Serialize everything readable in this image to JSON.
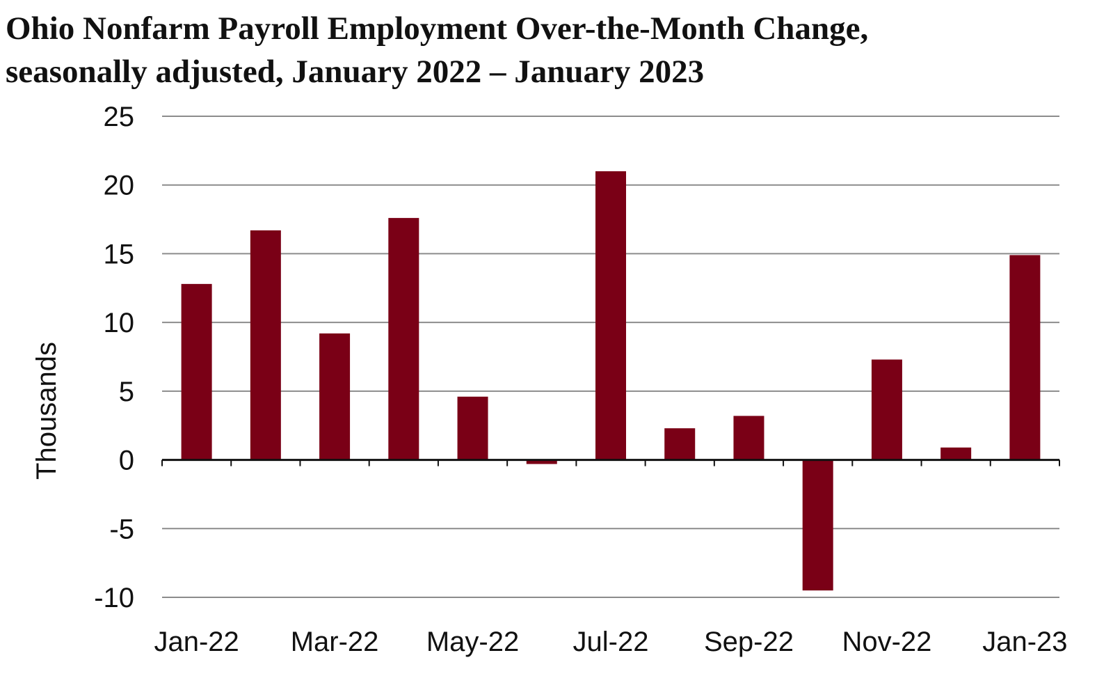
{
  "chart_data": {
    "type": "bar",
    "title": "Ohio Nonfarm Payroll Employment Over-the-Month Change,",
    "subtitle": "seasonally adjusted, January 2022 – January 2023",
    "xlabel": "",
    "ylabel": "Thousands",
    "ylim": [
      -10,
      25
    ],
    "yticks": [
      25,
      20,
      15,
      10,
      5,
      0,
      -5,
      -10
    ],
    "grid": true,
    "bar_color": "#7a0016",
    "categories": [
      "Jan-22",
      "Feb-22",
      "Mar-22",
      "Apr-22",
      "May-22",
      "Jun-22",
      "Jul-22",
      "Aug-22",
      "Sep-22",
      "Oct-22",
      "Nov-22",
      "Dec-22",
      "Jan-23"
    ],
    "x_tick_labels": [
      "Jan-22",
      "Mar-22",
      "May-22",
      "Jul-22",
      "Sep-22",
      "Nov-22",
      "Jan-23"
    ],
    "values": [
      12.8,
      16.7,
      9.2,
      17.6,
      4.6,
      -0.3,
      21.0,
      2.3,
      3.2,
      -9.5,
      7.3,
      0.9,
      14.9
    ]
  }
}
